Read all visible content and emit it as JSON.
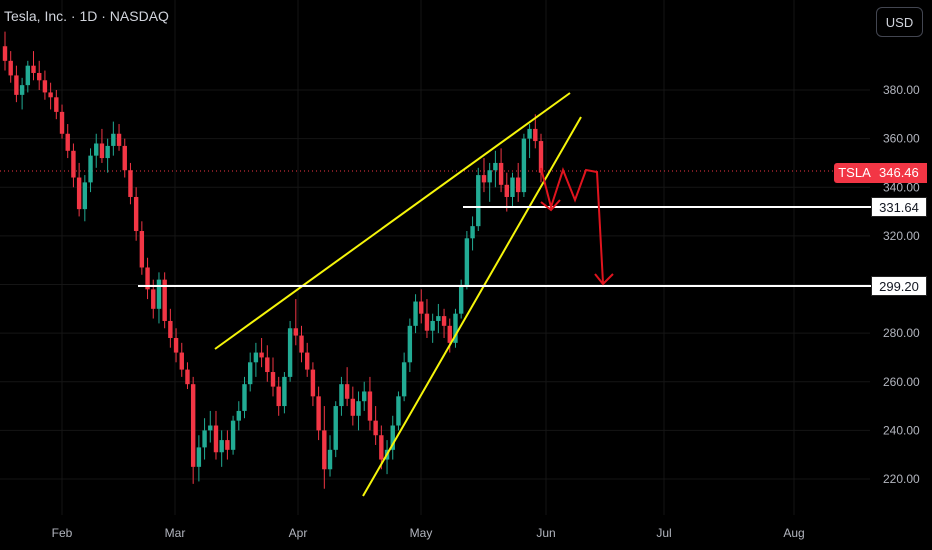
{
  "header": {
    "symbol_title": "Tesla, Inc. · 1D · NASDAQ",
    "currency_button": "USD"
  },
  "price_scale": {
    "ticks": [
      "380.00",
      "360.00",
      "340.00",
      "320.00",
      "300.00",
      "280.00",
      "260.00",
      "240.00",
      "220.00"
    ],
    "ticker_label": "TSLA",
    "last_price": "346.46",
    "level_1": "331.64",
    "level_2": "299.20"
  },
  "time_scale": {
    "ticks": [
      "Feb",
      "Mar",
      "Apr",
      "May",
      "Jun",
      "Jul",
      "Aug"
    ]
  },
  "colors": {
    "background": "#000000",
    "up": "#22ab94",
    "down": "#f23645",
    "trendline": "#f5f50a",
    "level_line": "#ffffff",
    "projection_arrow": "#e0141e",
    "last_price_line": "#f23645"
  },
  "chart_data": {
    "type": "candlestick",
    "symbol": "TSLA",
    "y_axis_unit": "USD",
    "ylim": [
      212,
      403
    ],
    "x_ticks": [
      "Feb",
      "Mar",
      "Apr",
      "May",
      "Jun",
      "Jul",
      "Aug"
    ],
    "last_price": 346.46,
    "horizontal_levels": [
      331.64,
      299.2
    ],
    "ohlc": [
      [
        398,
        404,
        388,
        392
      ],
      [
        392,
        396,
        383,
        386
      ],
      [
        386,
        390,
        375,
        378
      ],
      [
        378,
        385,
        372,
        382
      ],
      [
        382,
        392,
        379,
        390
      ],
      [
        390,
        396,
        384,
        387
      ],
      [
        387,
        392,
        380,
        384
      ],
      [
        384,
        388,
        376,
        379
      ],
      [
        379,
        383,
        372,
        377
      ],
      [
        377,
        380,
        368,
        371
      ],
      [
        371,
        374,
        360,
        362
      ],
      [
        362,
        366,
        352,
        355
      ],
      [
        355,
        358,
        340,
        344
      ],
      [
        344,
        350,
        328,
        331
      ],
      [
        331,
        345,
        326,
        342
      ],
      [
        342,
        356,
        338,
        353
      ],
      [
        353,
        362,
        348,
        358
      ],
      [
        358,
        364,
        350,
        352
      ],
      [
        352,
        360,
        346,
        357
      ],
      [
        357,
        367,
        353,
        362
      ],
      [
        362,
        366,
        355,
        357
      ],
      [
        357,
        360,
        344,
        347
      ],
      [
        347,
        350,
        333,
        336
      ],
      [
        336,
        340,
        318,
        322
      ],
      [
        322,
        326,
        304,
        307
      ],
      [
        307,
        311,
        294,
        298
      ],
      [
        298,
        302,
        286,
        290
      ],
      [
        290,
        305,
        284,
        302
      ],
      [
        302,
        305,
        282,
        285
      ],
      [
        285,
        290,
        274,
        278
      ],
      [
        278,
        282,
        268,
        272
      ],
      [
        272,
        276,
        262,
        265
      ],
      [
        265,
        268,
        257,
        259
      ],
      [
        259,
        262,
        218,
        225
      ],
      [
        225,
        238,
        219,
        233
      ],
      [
        233,
        245,
        228,
        240
      ],
      [
        240,
        248,
        235,
        242
      ],
      [
        242,
        248,
        228,
        231
      ],
      [
        231,
        240,
        225,
        236
      ],
      [
        236,
        240,
        228,
        232
      ],
      [
        232,
        246,
        230,
        244
      ],
      [
        244,
        252,
        240,
        248
      ],
      [
        248,
        262,
        245,
        259
      ],
      [
        259,
        272,
        256,
        268
      ],
      [
        268,
        276,
        262,
        272
      ],
      [
        272,
        278,
        266,
        270
      ],
      [
        270,
        275,
        260,
        264
      ],
      [
        264,
        270,
        254,
        258
      ],
      [
        258,
        262,
        246,
        250
      ],
      [
        250,
        264,
        247,
        262
      ],
      [
        262,
        285,
        260,
        282
      ],
      [
        282,
        294,
        275,
        279
      ],
      [
        279,
        283,
        268,
        272
      ],
      [
        272,
        276,
        262,
        265
      ],
      [
        265,
        268,
        250,
        254
      ],
      [
        254,
        258,
        236,
        240
      ],
      [
        240,
        250,
        216,
        224
      ],
      [
        224,
        238,
        221,
        232
      ],
      [
        232,
        252,
        229,
        250
      ],
      [
        250,
        262,
        246,
        259
      ],
      [
        259,
        266,
        250,
        253
      ],
      [
        253,
        258,
        242,
        246
      ],
      [
        246,
        256,
        240,
        252
      ],
      [
        252,
        260,
        248,
        256
      ],
      [
        256,
        262,
        240,
        244
      ],
      [
        244,
        250,
        234,
        238
      ],
      [
        238,
        242,
        224,
        228
      ],
      [
        228,
        236,
        222,
        232
      ],
      [
        232,
        246,
        228,
        242
      ],
      [
        242,
        256,
        240,
        254
      ],
      [
        254,
        272,
        252,
        268
      ],
      [
        268,
        286,
        264,
        283
      ],
      [
        283,
        296,
        280,
        293
      ],
      [
        293,
        298,
        284,
        288
      ],
      [
        288,
        294,
        278,
        281
      ],
      [
        281,
        288,
        276,
        285
      ],
      [
        285,
        292,
        280,
        287
      ],
      [
        287,
        290,
        278,
        283
      ],
      [
        283,
        286,
        272,
        276
      ],
      [
        276,
        290,
        274,
        288
      ],
      [
        288,
        302,
        286,
        299
      ],
      [
        299,
        322,
        298,
        319
      ],
      [
        319,
        328,
        314,
        324
      ],
      [
        324,
        348,
        322,
        345
      ],
      [
        345,
        352,
        338,
        342
      ],
      [
        342,
        350,
        334,
        347
      ],
      [
        347,
        355,
        340,
        350
      ],
      [
        350,
        356,
        338,
        341
      ],
      [
        341,
        346,
        330,
        336
      ],
      [
        336,
        346,
        332,
        344
      ],
      [
        344,
        350,
        334,
        338
      ],
      [
        338,
        362,
        336,
        360
      ],
      [
        360,
        366,
        352,
        364
      ],
      [
        364,
        370,
        356,
        359
      ],
      [
        359,
        362,
        342,
        346
      ]
    ]
  }
}
